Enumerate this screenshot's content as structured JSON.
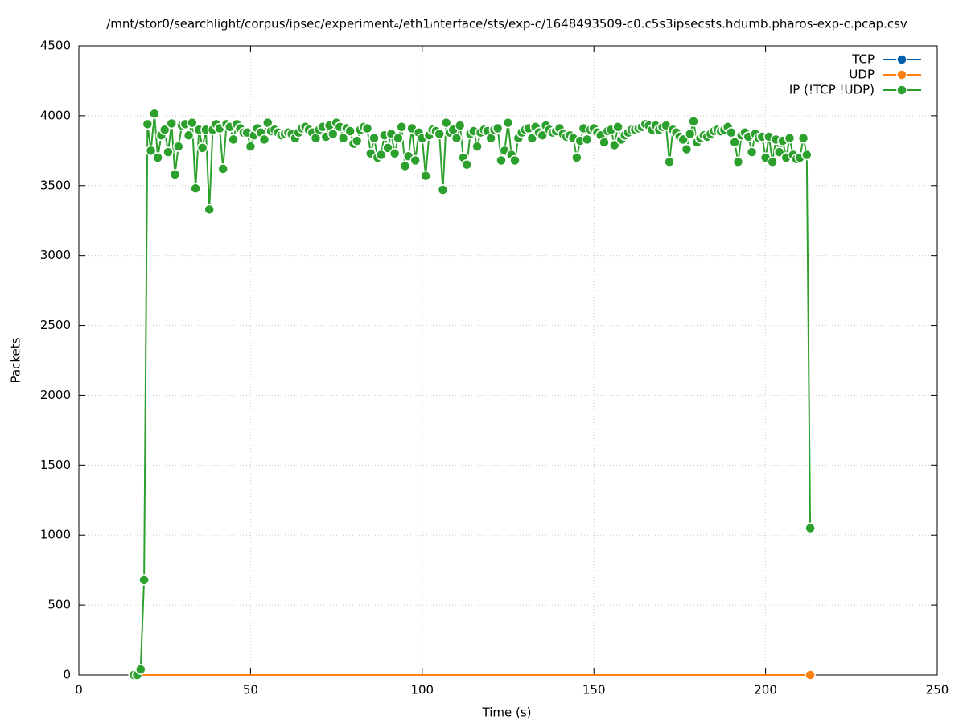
{
  "chart_data": {
    "type": "line",
    "title": "/mnt/stor0/searchlight/corpus/ipsec/experiment₄/eth1ᵢnterface/sts/exp-c/1648493509-c0.c5s3ipsecsts.hdumb.pharos-exp-c.pcap.csv",
    "x_label": "Time (s)",
    "y_label": "Packets",
    "xlim": [
      0,
      250
    ],
    "xticks": [
      0,
      50,
      100,
      150,
      200,
      250
    ],
    "ylim": [
      0,
      4500
    ],
    "yticks": [
      0,
      500,
      1000,
      1500,
      2000,
      2500,
      3000,
      3500,
      4000,
      4500
    ],
    "grid": true,
    "legend": "top-right",
    "x": [
      16,
      17,
      18,
      19,
      20,
      21,
      22,
      23,
      24,
      25,
      26,
      27,
      28,
      29,
      30,
      31,
      32,
      33,
      34,
      35,
      36,
      37,
      38,
      39,
      40,
      41,
      42,
      43,
      44,
      45,
      46,
      47,
      48,
      49,
      50,
      51,
      52,
      53,
      54,
      55,
      56,
      57,
      58,
      59,
      60,
      61,
      62,
      63,
      64,
      65,
      66,
      67,
      68,
      69,
      70,
      71,
      72,
      73,
      74,
      75,
      76,
      77,
      78,
      79,
      80,
      81,
      82,
      83,
      84,
      85,
      86,
      87,
      88,
      89,
      90,
      91,
      92,
      93,
      94,
      95,
      96,
      97,
      98,
      99,
      100,
      101,
      102,
      103,
      104,
      105,
      106,
      107,
      108,
      109,
      110,
      111,
      112,
      113,
      114,
      115,
      116,
      117,
      118,
      119,
      120,
      121,
      122,
      123,
      124,
      125,
      126,
      127,
      128,
      129,
      130,
      131,
      132,
      133,
      134,
      135,
      136,
      137,
      138,
      139,
      140,
      141,
      142,
      143,
      144,
      145,
      146,
      147,
      148,
      149,
      150,
      151,
      152,
      153,
      154,
      155,
      156,
      157,
      158,
      159,
      160,
      161,
      162,
      163,
      164,
      165,
      166,
      167,
      168,
      169,
      170,
      171,
      172,
      173,
      174,
      175,
      176,
      177,
      178,
      179,
      180,
      181,
      182,
      183,
      184,
      185,
      186,
      187,
      188,
      189,
      190,
      191,
      192,
      193,
      194,
      195,
      196,
      197,
      198,
      199,
      200,
      201,
      202,
      203,
      204,
      205,
      206,
      207,
      208,
      209,
      210,
      211,
      212,
      213
    ],
    "series": [
      {
        "name": "TCP",
        "color": "#0060ad",
        "points": "none",
        "values": [
          0,
          0,
          0,
          0,
          0,
          0,
          0,
          0,
          0,
          0,
          0,
          0,
          0,
          0,
          0,
          0,
          0,
          0,
          0,
          0,
          0,
          0,
          0,
          0,
          0,
          0,
          0,
          0,
          0,
          0,
          0,
          0,
          0,
          0,
          0,
          0,
          0,
          0,
          0,
          0,
          0,
          0,
          0,
          0,
          0,
          0,
          0,
          0,
          0,
          0,
          0,
          0,
          0,
          0,
          0,
          0,
          0,
          0,
          0,
          0,
          0,
          0,
          0,
          0,
          0,
          0,
          0,
          0,
          0,
          0,
          0,
          0,
          0,
          0,
          0,
          0,
          0,
          0,
          0,
          0,
          0,
          0,
          0,
          0,
          0,
          0,
          0,
          0,
          0,
          0,
          0,
          0,
          0,
          0,
          0,
          0,
          0,
          0,
          0,
          0,
          0,
          0,
          0,
          0,
          0,
          0,
          0,
          0,
          0,
          0,
          0,
          0,
          0,
          0,
          0,
          0,
          0,
          0,
          0,
          0,
          0,
          0,
          0,
          0,
          0,
          0,
          0,
          0,
          0,
          0,
          0,
          0,
          0,
          0,
          0,
          0,
          0,
          0,
          0,
          0,
          0,
          0,
          0,
          0,
          0,
          0,
          0,
          0,
          0,
          0,
          0,
          0,
          0,
          0,
          0,
          0,
          0,
          0,
          0,
          0,
          0,
          0,
          0,
          0,
          0,
          0,
          0,
          0,
          0,
          0,
          0,
          0,
          0,
          0,
          0,
          0,
          0,
          0,
          0,
          0,
          0,
          0,
          0,
          0,
          0,
          0,
          0,
          0,
          0,
          0,
          0,
          0,
          0,
          0,
          0,
          0,
          0,
          0
        ]
      },
      {
        "name": "UDP",
        "color": "#ff7f0e",
        "points": "last",
        "values": [
          0,
          0,
          0,
          0,
          0,
          0,
          0,
          0,
          0,
          0,
          0,
          0,
          0,
          0,
          0,
          0,
          0,
          0,
          0,
          0,
          0,
          0,
          0,
          0,
          0,
          0,
          0,
          0,
          0,
          0,
          0,
          0,
          0,
          0,
          0,
          0,
          0,
          0,
          0,
          0,
          0,
          0,
          0,
          0,
          0,
          0,
          0,
          0,
          0,
          0,
          0,
          0,
          0,
          0,
          0,
          0,
          0,
          0,
          0,
          0,
          0,
          0,
          0,
          0,
          0,
          0,
          0,
          0,
          0,
          0,
          0,
          0,
          0,
          0,
          0,
          0,
          0,
          0,
          0,
          0,
          0,
          0,
          0,
          0,
          0,
          0,
          0,
          0,
          0,
          0,
          0,
          0,
          0,
          0,
          0,
          0,
          0,
          0,
          0,
          0,
          0,
          0,
          0,
          0,
          0,
          0,
          0,
          0,
          0,
          0,
          0,
          0,
          0,
          0,
          0,
          0,
          0,
          0,
          0,
          0,
          0,
          0,
          0,
          0,
          0,
          0,
          0,
          0,
          0,
          0,
          0,
          0,
          0,
          0,
          0,
          0,
          0,
          0,
          0,
          0,
          0,
          0,
          0,
          0,
          0,
          0,
          0,
          0,
          0,
          0,
          0,
          0,
          0,
          0,
          0,
          0,
          0,
          0,
          0,
          0,
          0,
          0,
          0,
          0,
          0,
          0,
          0,
          0,
          0,
          0,
          0,
          0,
          0,
          0,
          0,
          0,
          0,
          0,
          0,
          0,
          0,
          0,
          0,
          0,
          0,
          0,
          0,
          0,
          0,
          0,
          0,
          0,
          0,
          0,
          0,
          0,
          0,
          0
        ]
      },
      {
        "name": "IP (!TCP  !UDP)",
        "color": "#2ca02c",
        "points": "all",
        "values": [
          0,
          0,
          40,
          680,
          3940,
          3750,
          4015,
          3700,
          3860,
          3900,
          3740,
          3945,
          3580,
          3780,
          3930,
          3940,
          3860,
          3950,
          3480,
          3900,
          3770,
          3900,
          3330,
          3900,
          3940,
          3910,
          3620,
          3940,
          3920,
          3830,
          3940,
          3910,
          3880,
          3880,
          3780,
          3860,
          3910,
          3880,
          3830,
          3950,
          3890,
          3900,
          3880,
          3860,
          3870,
          3880,
          3870,
          3840,
          3880,
          3910,
          3920,
          3900,
          3880,
          3840,
          3900,
          3920,
          3850,
          3930,
          3870,
          3950,
          3920,
          3840,
          3910,
          3890,
          3800,
          3820,
          3900,
          3920,
          3910,
          3730,
          3840,
          3700,
          3720,
          3860,
          3770,
          3870,
          3730,
          3840,
          3920,
          3640,
          3710,
          3910,
          3680,
          3880,
          3840,
          3570,
          3860,
          3900,
          3890,
          3870,
          3470,
          3950,
          3880,
          3900,
          3840,
          3930,
          3700,
          3650,
          3870,
          3890,
          3780,
          3880,
          3900,
          3890,
          3840,
          3900,
          3910,
          3680,
          3750,
          3950,
          3720,
          3680,
          3840,
          3880,
          3900,
          3910,
          3840,
          3920,
          3880,
          3860,
          3930,
          3900,
          3880,
          3890,
          3910,
          3870,
          3850,
          3860,
          3840,
          3700,
          3820,
          3910,
          3830,
          3900,
          3910,
          3880,
          3860,
          3810,
          3890,
          3900,
          3790,
          3920,
          3830,
          3860,
          3880,
          3900,
          3900,
          3910,
          3920,
          3940,
          3930,
          3900,
          3930,
          3900,
          3920,
          3930,
          3670,
          3900,
          3880,
          3850,
          3830,
          3760,
          3870,
          3960,
          3810,
          3840,
          3860,
          3850,
          3870,
          3890,
          3900,
          3890,
          3900,
          3920,
          3880,
          3810,
          3670,
          3860,
          3880,
          3850,
          3740,
          3870,
          3840,
          3850,
          3700,
          3850,
          3670,
          3830,
          3740,
          3820,
          3700,
          3840,
          3720,
          3690,
          3700,
          3840,
          3720,
          1050
        ]
      }
    ]
  }
}
